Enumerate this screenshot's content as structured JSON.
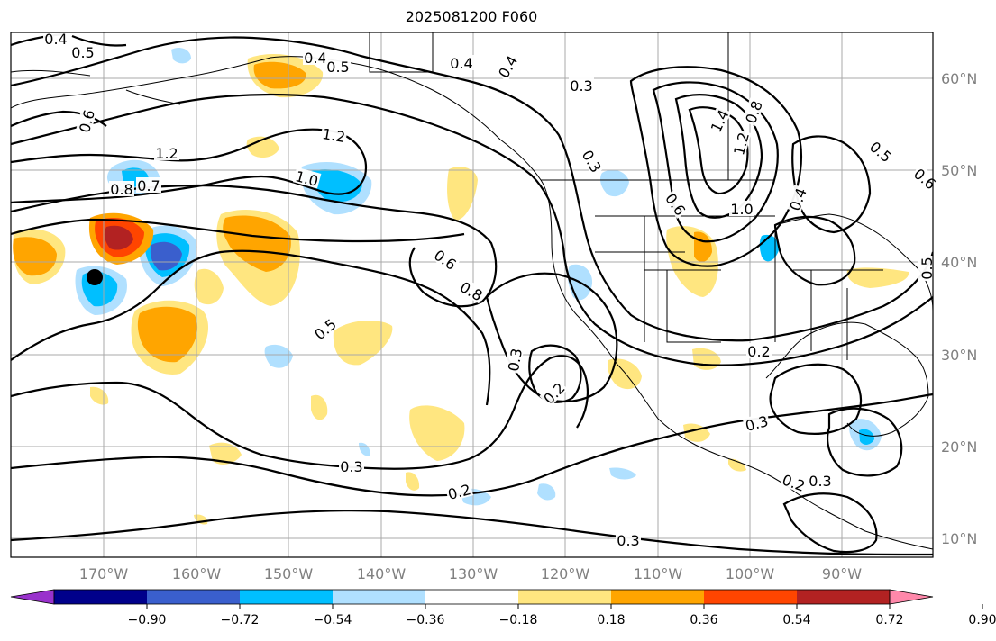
{
  "title": "2025081200 F060",
  "map": {
    "region": "North Pacific and North America",
    "lon_labels": [
      "170°W",
      "160°W",
      "150°W",
      "140°W",
      "130°W",
      "120°W",
      "110°W",
      "100°W",
      "90°W"
    ],
    "lat_labels": [
      "60°N",
      "50°N",
      "40°N",
      "30°N",
      "20°N",
      "10°N"
    ],
    "contour_labels": [
      {
        "text": "0.4"
      },
      {
        "text": "0.5"
      },
      {
        "text": "0.6"
      },
      {
        "text": "1.2"
      },
      {
        "text": "0.8"
      },
      {
        "text": "0.7"
      },
      {
        "text": "1.2"
      },
      {
        "text": "1.0"
      },
      {
        "text": "0.4"
      },
      {
        "text": "0.5"
      },
      {
        "text": "0.4"
      },
      {
        "text": "0.4"
      },
      {
        "text": "0.3"
      },
      {
        "text": "0.3"
      },
      {
        "text": "0.6"
      },
      {
        "text": "0.8"
      },
      {
        "text": "0.5"
      },
      {
        "text": "0.3"
      },
      {
        "text": "0.2"
      },
      {
        "text": "0.3"
      },
      {
        "text": "0.2"
      },
      {
        "text": "0.3"
      },
      {
        "text": "1.4"
      },
      {
        "text": "1.2"
      },
      {
        "text": "0.8"
      },
      {
        "text": "1.0"
      },
      {
        "text": "0.6"
      },
      {
        "text": "0.2"
      },
      {
        "text": "0.3"
      },
      {
        "text": "0.2"
      },
      {
        "text": "0.3"
      },
      {
        "text": "0.5"
      },
      {
        "text": "0.6"
      },
      {
        "text": "0.4"
      },
      {
        "text": "0.5"
      }
    ],
    "marker": "black-dot"
  },
  "colorbar": {
    "ticks": [
      "−0.90",
      "−0.72",
      "−0.54",
      "−0.36",
      "−0.18",
      "0.18",
      "0.36",
      "0.54",
      "0.72",
      "0.90"
    ],
    "colors": [
      "#9932cc",
      "#00008b",
      "#3a5fcd",
      "#00bfff",
      "#b0e0ff",
      "#ffffff",
      "#ffe680",
      "#ffa500",
      "#ff4500",
      "#b22222",
      "#ff88aa"
    ]
  }
}
